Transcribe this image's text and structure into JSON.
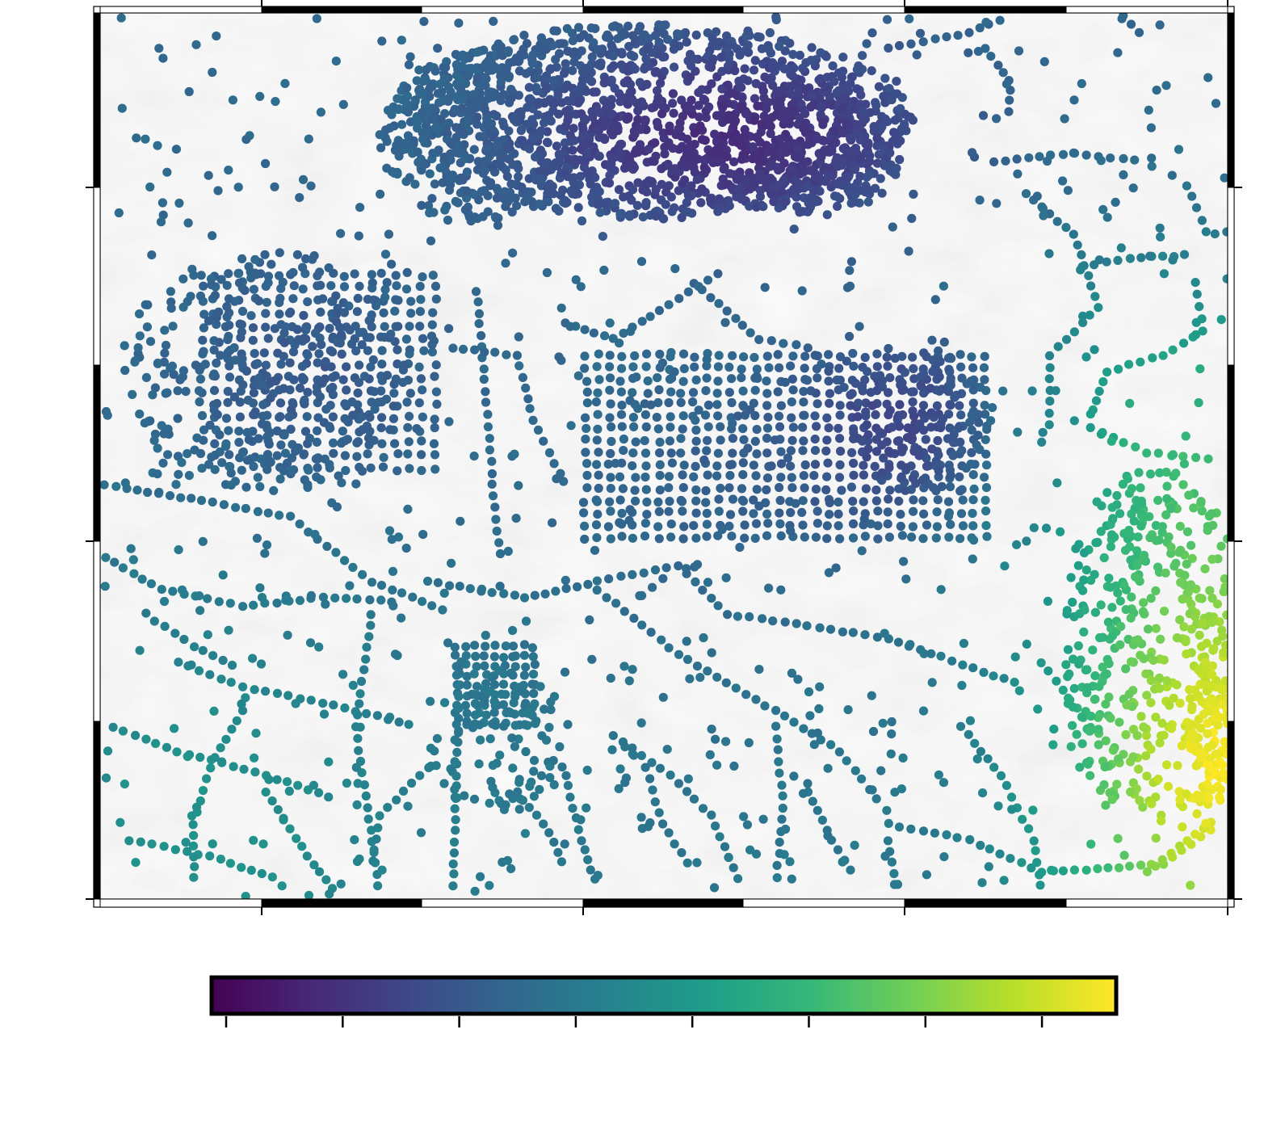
{
  "map": {
    "projection_frame": "fancy",
    "background": "shaded relief",
    "colormap": "viridis",
    "colors": {
      "frame": "#000000",
      "relief_light": "#f7f7f7",
      "relief_dark": "#b8b8b8",
      "viridis_stops": [
        "#440154",
        "#482878",
        "#3e4989",
        "#31688e",
        "#26828e",
        "#1f9e89",
        "#35b779",
        "#6ece58",
        "#b5de2b",
        "#fde725"
      ]
    }
  },
  "colorbar": {
    "orientation": "horizontal",
    "position": "bottom-center",
    "tick_count": 8,
    "tick_labels_shown": false
  }
}
